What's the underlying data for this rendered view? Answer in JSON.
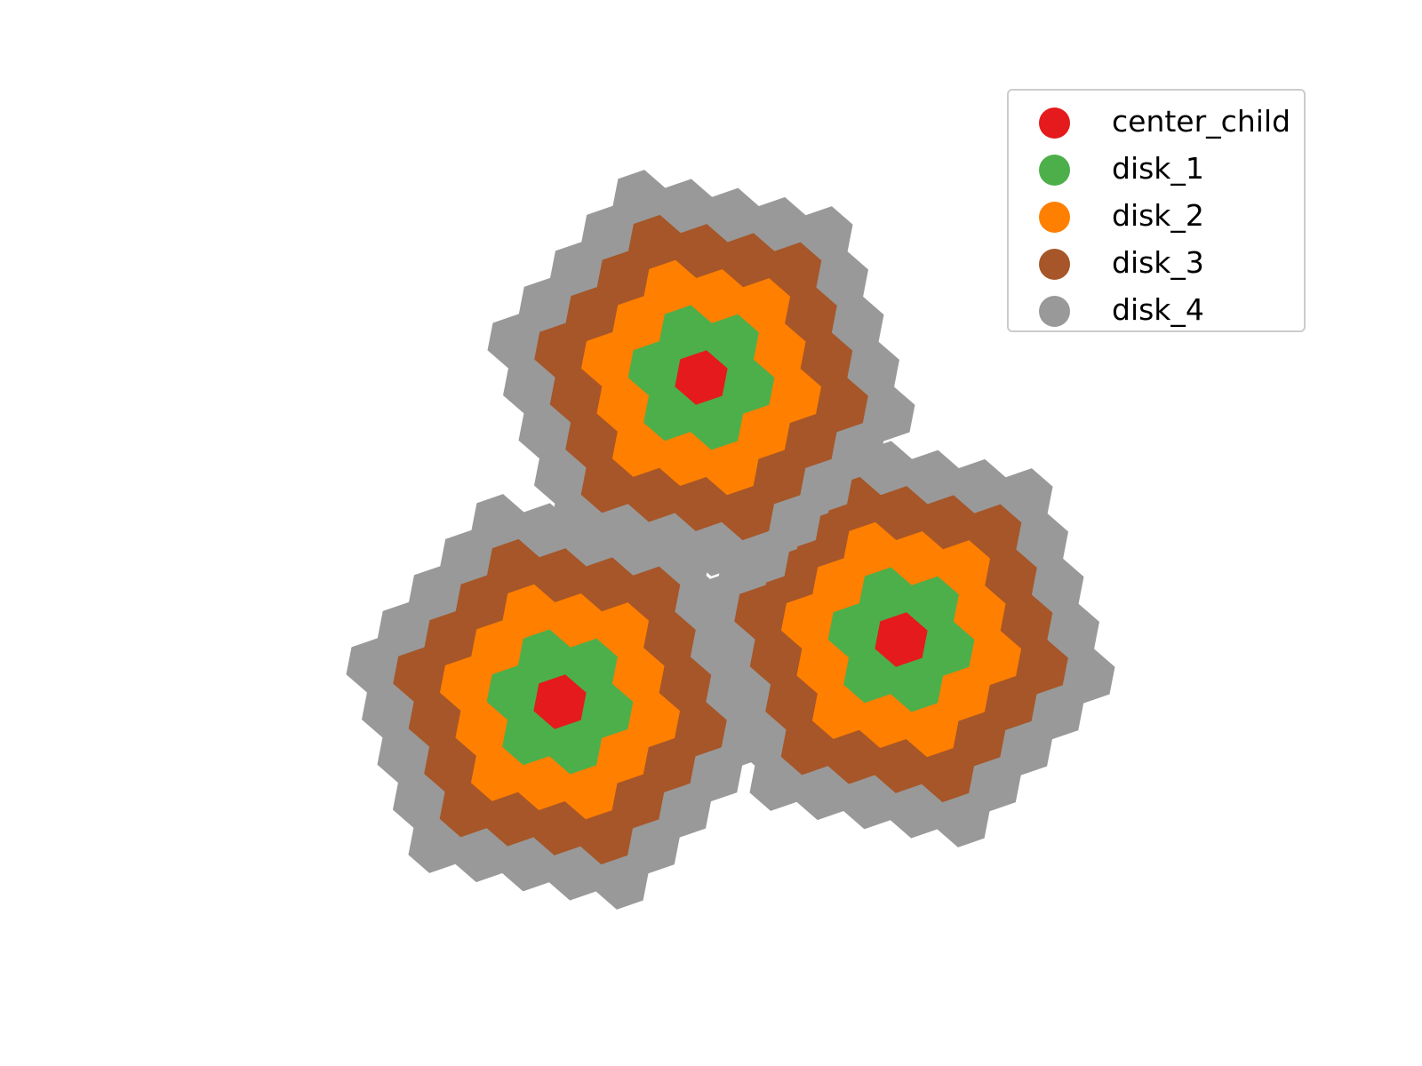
{
  "chart_data": {
    "type": "hexbin",
    "clusters": [
      "lower-left",
      "lower-right",
      "top"
    ],
    "ring_categories": [
      "center_child",
      "disk_1",
      "disk_2",
      "disk_3",
      "disk_4"
    ],
    "ring_cell_counts": [
      1,
      6,
      12,
      18,
      24
    ],
    "colors": {
      "center_child": "#e41a1c",
      "disk_1": "#4daf4a",
      "disk_2": "#ff7f00",
      "disk_3": "#a65628",
      "disk_4": "#999999"
    },
    "legend_position": "top-right"
  },
  "legend": {
    "items": [
      {
        "label": "center_child",
        "color": "#e41a1c"
      },
      {
        "label": "disk_1",
        "color": "#4daf4a"
      },
      {
        "label": "disk_2",
        "color": "#ff7f00"
      },
      {
        "label": "disk_3",
        "color": "#a65628"
      },
      {
        "label": "disk_4",
        "color": "#999999"
      }
    ]
  }
}
